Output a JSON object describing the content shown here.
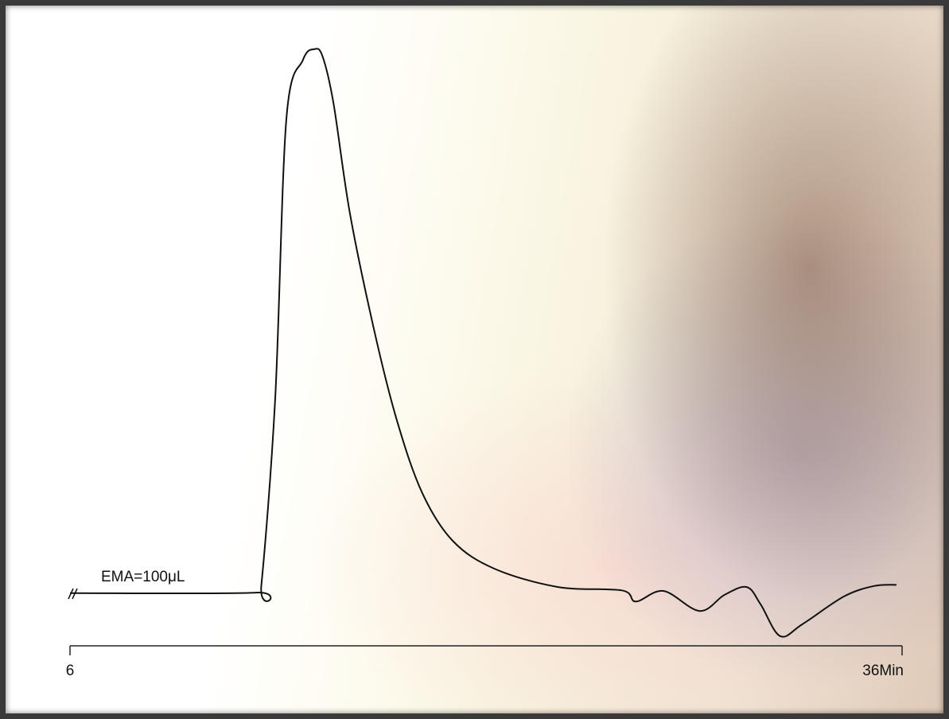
{
  "chart_data": {
    "type": "line",
    "x": [
      6,
      12.7,
      12.9,
      13.4,
      13.8,
      14.4,
      14.8,
      15.1,
      15.5,
      16.1,
      17.0,
      17.8,
      18.7,
      19.8,
      21.3,
      23.6,
      25.9,
      26.4,
      27.4,
      28.7,
      29.6,
      30.4,
      30.9,
      31.6,
      32.4,
      33.9,
      35.0,
      35.8
    ],
    "series": [
      {
        "color": "#111111",
        "values": [
          0.6,
          0.7,
          2.1,
          35.7,
          85.7,
          96.4,
          98.3,
          97.1,
          88.6,
          68.6,
          47.1,
          31.4,
          18.6,
          10,
          5,
          1.7,
          1.1,
          -0.9,
          1.0,
          -2.6,
          0.3,
          1.7,
          -1.4,
          -7.1,
          -5,
          0,
          1.9,
          2.1
        ]
      }
    ],
    "annotation": "EMA=100μL",
    "xlim": [
      6,
      36
    ],
    "xticks": [
      6,
      {
        "value": 36,
        "label": "36Min"
      }
    ],
    "ylim": [
      -10,
      100
    ]
  }
}
